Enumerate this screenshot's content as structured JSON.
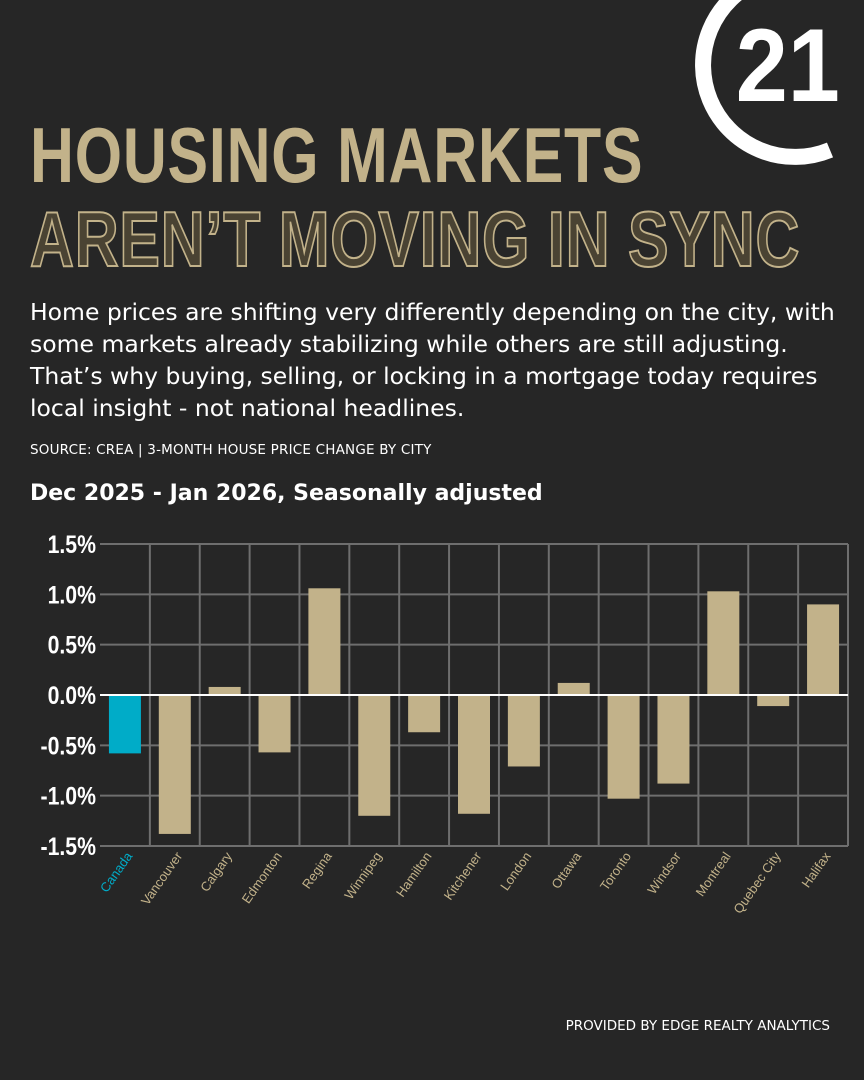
{
  "logo": {
    "text": "21"
  },
  "header": {
    "title_line1": "HOUSING MARKETS",
    "title_line2": "AREN’T MOVING IN SYNC"
  },
  "description": "Home prices are shifting very differently depending on the city, with some markets already stabilizing while others are still adjusting. That’s why buying, selling, or locking in a mortgage today requires local insight - not national headlines.",
  "source": "SOURCE: CREA | 3-MONTH HOUSE PRICE CHANGE BY CITY",
  "footer": "PROVIDED BY EDGE REALTY ANALYTICS",
  "colors": {
    "background": "#262626",
    "bar": "#c2b28a",
    "highlight": "#00acc8",
    "grid": "#6e6e6e"
  },
  "chart_data": {
    "type": "bar",
    "title": "Dec 2025 - Jan 2026, Seasonally adjusted",
    "categories": [
      "Canada",
      "Vancouver",
      "Calgary",
      "Edmonton",
      "Regina",
      "Winnipeg",
      "Hamilton",
      "Kitchener",
      "London",
      "Ottawa",
      "Toronto",
      "Windsor",
      "Montreal",
      "Quebec City",
      "Halifax"
    ],
    "values": [
      -0.58,
      -1.38,
      0.08,
      -0.57,
      1.06,
      -1.2,
      -0.37,
      -1.18,
      -0.71,
      0.12,
      -1.03,
      -0.88,
      1.03,
      -0.11,
      0.9
    ],
    "highlight": "Canada",
    "ylim": [
      -1.5,
      1.5
    ],
    "yticks": [
      "1.5%",
      "1.0%",
      "0.5%",
      "0.0%",
      "-0.5%",
      "-1.0%",
      "-1.5%"
    ],
    "ytick_values": [
      1.5,
      1.0,
      0.5,
      0.0,
      -0.5,
      -1.0,
      -1.5
    ],
    "unit": "%",
    "grid": true
  }
}
